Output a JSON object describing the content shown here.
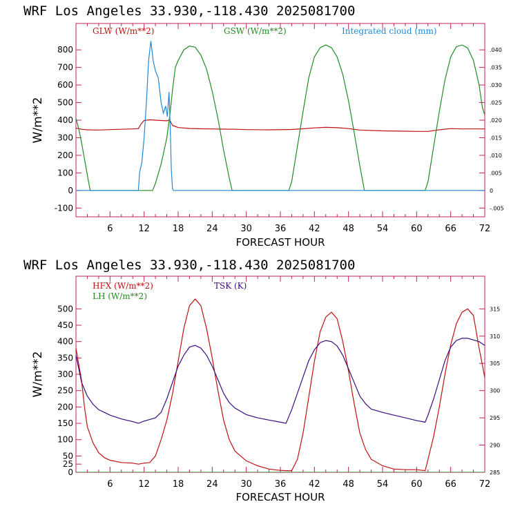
{
  "colors": {
    "red": "#c01010",
    "green": "#228b22",
    "blue": "#1e88d8",
    "purple": "#3a0a80",
    "axis": "#c02060"
  },
  "chart_data": [
    {
      "type": "line",
      "title": "WRF  Los Angeles   33.930,-118.430  2025081700",
      "xlabel": "FORECAST HOUR",
      "ylabel": "W/m**2",
      "xlim": [
        0,
        72
      ],
      "ylim": [
        -150,
        950
      ],
      "y2lim": [
        -0.0075,
        0.0475
      ],
      "xticks": [
        "6",
        "12",
        "18",
        "24",
        "30",
        "36",
        "42",
        "48",
        "54",
        "60",
        "66",
        "72"
      ],
      "yticks": [
        "-100",
        "0",
        "100",
        "200",
        "300",
        "400",
        "500",
        "600",
        "700",
        "800"
      ],
      "y2ticks": [
        "-.005",
        "0",
        ".005",
        ".010",
        ".015",
        ".020",
        ".025",
        ".030",
        ".035",
        ".040"
      ],
      "legend_placement": "top",
      "series": [
        {
          "name": "GLW (W/m**2)",
          "color": "#c01010",
          "axis": "left",
          "points": [
            [
              0,
              355
            ],
            [
              1,
              348
            ],
            [
              2,
              345
            ],
            [
              4,
              344
            ],
            [
              6,
              346
            ],
            [
              8,
              348
            ],
            [
              10,
              350
            ],
            [
              11,
              352
            ],
            [
              11.5,
              380
            ],
            [
              12,
              398
            ],
            [
              13,
              402
            ],
            [
              14,
              400
            ],
            [
              15,
              398
            ],
            [
              16,
              396
            ],
            [
              16.5,
              402
            ],
            [
              17,
              370
            ],
            [
              18,
              358
            ],
            [
              20,
              353
            ],
            [
              22,
              351
            ],
            [
              24,
              350
            ],
            [
              26,
              349
            ],
            [
              28,
              348
            ],
            [
              30,
              346
            ],
            [
              34,
              345
            ],
            [
              38,
              347
            ],
            [
              40,
              351
            ],
            [
              42,
              356
            ],
            [
              44,
              359
            ],
            [
              46,
              357
            ],
            [
              48,
              352
            ],
            [
              50,
              344
            ],
            [
              54,
              339
            ],
            [
              58,
              337
            ],
            [
              60,
              336
            ],
            [
              62,
              336
            ],
            [
              64,
              345
            ],
            [
              66,
              352
            ],
            [
              68,
              350
            ],
            [
              70,
              350
            ],
            [
              72,
              350
            ]
          ]
        },
        {
          "name": "GSW (W/m**2)",
          "color": "#228b22",
          "axis": "left",
          "points": [
            [
              0,
              410
            ],
            [
              0.5,
              350
            ],
            [
              1,
              270
            ],
            [
              1.5,
              180
            ],
            [
              2,
              90
            ],
            [
              2.5,
              0
            ],
            [
              3,
              0
            ],
            [
              13.5,
              0
            ],
            [
              14,
              40
            ],
            [
              15,
              150
            ],
            [
              16,
              300
            ],
            [
              16.5,
              420
            ],
            [
              17,
              570
            ],
            [
              17.5,
              700
            ],
            [
              18,
              740
            ],
            [
              19,
              800
            ],
            [
              20,
              822
            ],
            [
              21,
              815
            ],
            [
              22,
              770
            ],
            [
              23,
              690
            ],
            [
              24,
              565
            ],
            [
              25,
              410
            ],
            [
              26,
              230
            ],
            [
              27,
              70
            ],
            [
              27.5,
              0
            ],
            [
              28,
              0
            ],
            [
              37.5,
              0
            ],
            [
              38,
              50
            ],
            [
              39,
              250
            ],
            [
              40,
              450
            ],
            [
              41,
              640
            ],
            [
              42,
              760
            ],
            [
              43,
              812
            ],
            [
              44,
              828
            ],
            [
              45,
              812
            ],
            [
              46,
              760
            ],
            [
              47,
              660
            ],
            [
              48,
              510
            ],
            [
              49,
              330
            ],
            [
              50,
              140
            ],
            [
              50.8,
              0
            ],
            [
              51,
              0
            ],
            [
              61.5,
              0
            ],
            [
              62,
              50
            ],
            [
              63,
              250
            ],
            [
              64,
              450
            ],
            [
              65,
              630
            ],
            [
              66,
              760
            ],
            [
              67,
              818
            ],
            [
              68,
              828
            ],
            [
              69,
              810
            ],
            [
              70,
              740
            ],
            [
              71,
              600
            ],
            [
              71.6,
              470
            ],
            [
              72,
              430
            ]
          ]
        },
        {
          "name": "Integrated cloud (mm)",
          "color": "#1e88d8",
          "axis": "right",
          "points": [
            [
              0,
              0
            ],
            [
              11,
              0
            ],
            [
              11.2,
              0.005
            ],
            [
              11.6,
              0.008
            ],
            [
              12,
              0.015
            ],
            [
              12.4,
              0.025
            ],
            [
              12.8,
              0.037
            ],
            [
              13.2,
              0.0425
            ],
            [
              13.6,
              0.037
            ],
            [
              14,
              0.034
            ],
            [
              14.5,
              0.032
            ],
            [
              15,
              0.025
            ],
            [
              15.4,
              0.022
            ],
            [
              15.8,
              0.024
            ],
            [
              16.1,
              0.021
            ],
            [
              16.4,
              0.028
            ],
            [
              16.6,
              0.018
            ],
            [
              16.8,
              0.006
            ],
            [
              17,
              0.0005
            ],
            [
              17.2,
              0
            ],
            [
              72,
              0
            ]
          ]
        }
      ]
    },
    {
      "type": "line",
      "title": "WRF  Los Angeles   33.930,-118.430  2025081700",
      "xlabel": "FORECAST HOUR",
      "ylabel": "W/m**2",
      "xlim": [
        0,
        72
      ],
      "ylim": [
        0,
        600
      ],
      "y2lim": [
        285,
        321
      ],
      "xticks": [
        "6",
        "12",
        "18",
        "24",
        "30",
        "36",
        "42",
        "48",
        "54",
        "60",
        "66",
        "72"
      ],
      "yticks": [
        "0",
        "25",
        "50",
        "100",
        "150",
        "200",
        "250",
        "300",
        "350",
        "400",
        "450",
        "500"
      ],
      "y2ticks": [
        "285",
        "290",
        "295",
        "300",
        "305",
        "310",
        "315"
      ],
      "legend_placement": "top-left",
      "series": [
        {
          "name": "HFX (W/m**2)",
          "color": "#c01010",
          "axis": "left",
          "points": [
            [
              0,
              380
            ],
            [
              0.5,
              330
            ],
            [
              1,
              280
            ],
            [
              1.5,
              200
            ],
            [
              2,
              140
            ],
            [
              3,
              90
            ],
            [
              4,
              60
            ],
            [
              5,
              45
            ],
            [
              6,
              37
            ],
            [
              8,
              30
            ],
            [
              10,
              28
            ],
            [
              11,
              25
            ],
            [
              12,
              28
            ],
            [
              13,
              30
            ],
            [
              14,
              50
            ],
            [
              15,
              100
            ],
            [
              16,
              160
            ],
            [
              17,
              240
            ],
            [
              18,
              340
            ],
            [
              19,
              440
            ],
            [
              20,
              510
            ],
            [
              21,
              530
            ],
            [
              22,
              510
            ],
            [
              23,
              440
            ],
            [
              24,
              350
            ],
            [
              25,
              250
            ],
            [
              26,
              160
            ],
            [
              27,
              100
            ],
            [
              28,
              65
            ],
            [
              30,
              35
            ],
            [
              32,
              20
            ],
            [
              34,
              10
            ],
            [
              36,
              6
            ],
            [
              37,
              5
            ],
            [
              38,
              5
            ],
            [
              39,
              40
            ],
            [
              40,
              120
            ],
            [
              41,
              230
            ],
            [
              42,
              340
            ],
            [
              43,
              430
            ],
            [
              44,
              475
            ],
            [
              45,
              490
            ],
            [
              46,
              470
            ],
            [
              47,
              400
            ],
            [
              48,
              310
            ],
            [
              49,
              210
            ],
            [
              50,
              120
            ],
            [
              51,
              70
            ],
            [
              52,
              40
            ],
            [
              54,
              20
            ],
            [
              56,
              10
            ],
            [
              58,
              8
            ],
            [
              60,
              8
            ],
            [
              61.5,
              5
            ],
            [
              62,
              40
            ],
            [
              63,
              110
            ],
            [
              64,
              200
            ],
            [
              65,
              300
            ],
            [
              66,
              390
            ],
            [
              67,
              455
            ],
            [
              68,
              490
            ],
            [
              69,
              500
            ],
            [
              70,
              480
            ],
            [
              71,
              380
            ],
            [
              72,
              290
            ]
          ]
        },
        {
          "name": "LH (W/m**2)",
          "color": "#228b22",
          "axis": "left",
          "points": [
            [
              0,
              0
            ],
            [
              72,
              0
            ]
          ]
        },
        {
          "name": "TSK (K)",
          "color": "#3a0a80",
          "axis": "right",
          "points": [
            [
              0,
              306.5
            ],
            [
              0.5,
              304
            ],
            [
              1,
              301.5
            ],
            [
              2,
              299
            ],
            [
              3,
              297.5
            ],
            [
              4,
              296.5
            ],
            [
              5,
              296
            ],
            [
              6,
              295.5
            ],
            [
              8,
              294.8
            ],
            [
              10,
              294.3
            ],
            [
              11,
              294
            ],
            [
              12,
              294.4
            ],
            [
              14,
              295
            ],
            [
              15,
              296
            ],
            [
              16,
              298.5
            ],
            [
              17,
              301.5
            ],
            [
              18,
              304.5
            ],
            [
              19,
              306.5
            ],
            [
              20,
              308
            ],
            [
              21,
              308.3
            ],
            [
              22,
              307.8
            ],
            [
              23,
              306.5
            ],
            [
              24,
              304.5
            ],
            [
              25,
              302
            ],
            [
              26,
              299.5
            ],
            [
              27,
              297.8
            ],
            [
              28,
              296.8
            ],
            [
              30,
              295.6
            ],
            [
              32,
              295
            ],
            [
              34,
              294.6
            ],
            [
              36,
              294.2
            ],
            [
              37,
              294
            ],
            [
              38,
              296.5
            ],
            [
              39,
              299.5
            ],
            [
              40,
              302.5
            ],
            [
              41,
              305.5
            ],
            [
              42,
              307.5
            ],
            [
              43,
              308.8
            ],
            [
              44,
              309.2
            ],
            [
              45,
              309
            ],
            [
              46,
              308.2
            ],
            [
              47,
              306.5
            ],
            [
              48,
              304
            ],
            [
              49,
              301.5
            ],
            [
              50,
              299
            ],
            [
              51,
              297.6
            ],
            [
              52,
              296.6
            ],
            [
              54,
              296
            ],
            [
              56,
              295.5
            ],
            [
              58,
              295
            ],
            [
              60,
              294.5
            ],
            [
              61.5,
              294.2
            ],
            [
              62,
              295.5
            ],
            [
              63,
              298.5
            ],
            [
              64,
              302
            ],
            [
              65,
              305.5
            ],
            [
              66,
              308
            ],
            [
              67,
              309.2
            ],
            [
              68,
              309.6
            ],
            [
              69,
              309.6
            ],
            [
              70,
              309.3
            ],
            [
              71,
              309
            ],
            [
              72,
              308.3
            ]
          ]
        }
      ]
    }
  ]
}
